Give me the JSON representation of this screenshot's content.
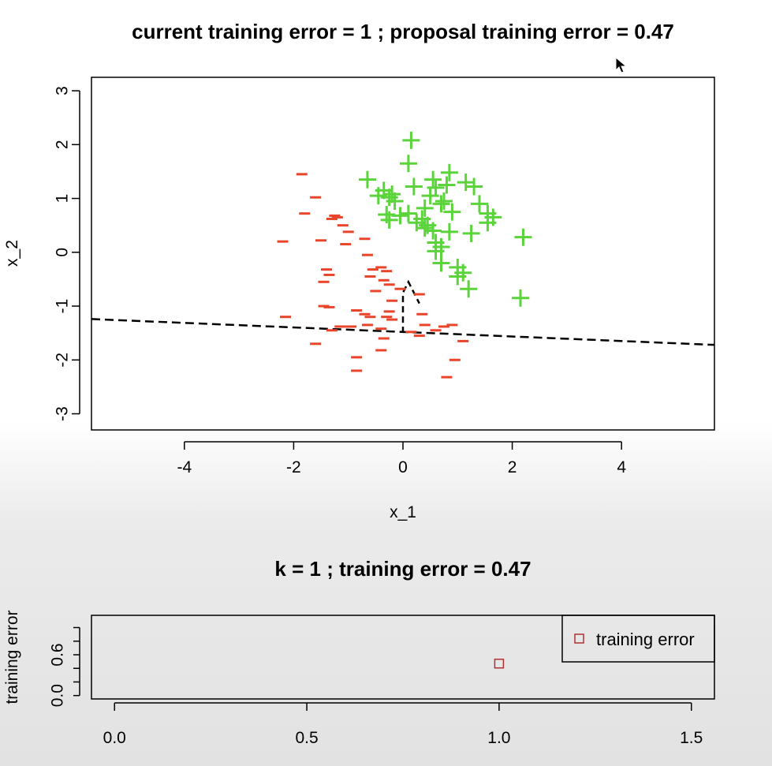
{
  "chart_data": [
    {
      "type": "scatter",
      "title": "current training error =  1 ; proposal training error =  0.47",
      "xlabel": "x_1",
      "ylabel": "x_2",
      "xlim": [
        -5.7,
        5.7
      ],
      "ylim": [
        -3.3,
        3.25
      ],
      "xticks": [
        -4,
        -2,
        0,
        2,
        4
      ],
      "yticks": [
        -3,
        -2,
        -1,
        0,
        1,
        2,
        3
      ],
      "colors": {
        "negative": "#e8452a",
        "positive": "#5ad43a",
        "boundary": "#000000"
      },
      "series": [
        {
          "marker": "minus",
          "points": [
            [
              -1.85,
              1.45
            ],
            [
              -1.6,
              1.02
            ],
            [
              -1.8,
              0.72
            ],
            [
              -1.25,
              0.68
            ],
            [
              -1.2,
              0.65
            ],
            [
              -1.3,
              0.62
            ],
            [
              -1.1,
              0.5
            ],
            [
              -1.0,
              0.38
            ],
            [
              -0.7,
              0.25
            ],
            [
              -1.5,
              0.22
            ],
            [
              -2.2,
              0.2
            ],
            [
              -1.05,
              0.15
            ],
            [
              -0.65,
              -0.05
            ],
            [
              -1.4,
              -0.32
            ],
            [
              -1.35,
              -0.42
            ],
            [
              -1.45,
              -0.55
            ],
            [
              -0.4,
              -0.28
            ],
            [
              -0.55,
              -0.32
            ],
            [
              -0.3,
              -0.35
            ],
            [
              -0.6,
              -0.45
            ],
            [
              -0.35,
              -0.52
            ],
            [
              -0.25,
              -0.6
            ],
            [
              -0.05,
              -0.68
            ],
            [
              -0.5,
              -0.72
            ],
            [
              -0.2,
              -0.9
            ],
            [
              0.3,
              -0.78
            ],
            [
              -1.45,
              -1.0
            ],
            [
              -1.35,
              -1.02
            ],
            [
              -0.85,
              -1.08
            ],
            [
              -0.7,
              -1.15
            ],
            [
              -0.6,
              -1.2
            ],
            [
              -0.25,
              -1.1
            ],
            [
              -0.2,
              -1.25
            ],
            [
              -0.3,
              -1.2
            ],
            [
              0.35,
              -1.15
            ],
            [
              0.4,
              -1.35
            ],
            [
              -2.15,
              -1.2
            ],
            [
              -1.15,
              -1.38
            ],
            [
              -1.3,
              -1.45
            ],
            [
              -0.95,
              -1.38
            ],
            [
              -0.65,
              -1.35
            ],
            [
              -0.4,
              -1.42
            ],
            [
              -0.35,
              -1.6
            ],
            [
              0.6,
              -1.45
            ],
            [
              0.75,
              -1.38
            ],
            [
              0.9,
              -1.35
            ],
            [
              0.3,
              -1.55
            ],
            [
              0.15,
              -1.48
            ],
            [
              -1.6,
              -1.7
            ],
            [
              1.1,
              -1.65
            ],
            [
              -0.4,
              -1.82
            ],
            [
              -0.85,
              -1.95
            ],
            [
              -0.85,
              -2.2
            ],
            [
              0.95,
              -2.0
            ],
            [
              0.8,
              -2.32
            ]
          ]
        },
        {
          "marker": "plus",
          "points": [
            [
              0.15,
              2.08
            ],
            [
              0.1,
              1.65
            ],
            [
              -0.65,
              1.35
            ],
            [
              0.85,
              1.48
            ],
            [
              0.55,
              1.35
            ],
            [
              1.15,
              1.3
            ],
            [
              1.3,
              1.22
            ],
            [
              -0.45,
              1.05
            ],
            [
              -0.25,
              1.02
            ],
            [
              -0.35,
              1.15
            ],
            [
              -0.2,
              1.08
            ],
            [
              0.2,
              1.22
            ],
            [
              0.6,
              1.2
            ],
            [
              0.8,
              1.25
            ],
            [
              0.5,
              1.05
            ],
            [
              0.75,
              0.95
            ],
            [
              -0.15,
              0.95
            ],
            [
              0.7,
              0.9
            ],
            [
              1.4,
              0.9
            ],
            [
              0.4,
              0.82
            ],
            [
              0.9,
              0.75
            ],
            [
              1.55,
              0.72
            ],
            [
              1.65,
              0.65
            ],
            [
              -0.3,
              0.7
            ],
            [
              0.1,
              0.72
            ],
            [
              -0.05,
              0.68
            ],
            [
              -0.25,
              0.6
            ],
            [
              0.35,
              0.62
            ],
            [
              0.25,
              0.55
            ],
            [
              0.45,
              0.5
            ],
            [
              0.4,
              0.45
            ],
            [
              0.55,
              0.4
            ],
            [
              0.85,
              0.38
            ],
            [
              1.25,
              0.35
            ],
            [
              1.55,
              0.55
            ],
            [
              2.2,
              0.28
            ],
            [
              0.6,
              0.18
            ],
            [
              0.7,
              0.1
            ],
            [
              0.6,
              0.02
            ],
            [
              0.7,
              -0.2
            ],
            [
              1.0,
              -0.28
            ],
            [
              1.1,
              -0.38
            ],
            [
              1.0,
              -0.45
            ],
            [
              1.2,
              -0.68
            ],
            [
              2.15,
              -0.85
            ]
          ]
        }
      ],
      "boundary": {
        "line": [
          [
            -5.7,
            -1.24
          ],
          [
            5.7,
            -1.72
          ]
        ],
        "polyline": [
          [
            0.0,
            -1.5
          ],
          [
            0.0,
            -0.75
          ],
          [
            0.1,
            -0.55
          ],
          [
            0.3,
            -0.95
          ]
        ]
      }
    },
    {
      "type": "scatter",
      "title": "k =  1 ; training error =  0.47",
      "xlabel": "",
      "ylabel": "training error",
      "xlim": [
        -0.06,
        1.56
      ],
      "ylim": [
        -0.05,
        1.18
      ],
      "xticks": [
        0.0,
        0.5,
        1.0,
        1.5
      ],
      "xtick_labels": [
        "0.0",
        "0.5",
        "1.0",
        "1.5"
      ],
      "yticks": [
        0.0,
        0.6
      ],
      "ytick_labels": [
        "0.0",
        "0.6"
      ],
      "legend": {
        "position": "top-right",
        "label": "training error",
        "marker": "open-square",
        "color": "#b03030"
      },
      "points": [
        [
          1.0,
          0.47
        ]
      ]
    }
  ]
}
